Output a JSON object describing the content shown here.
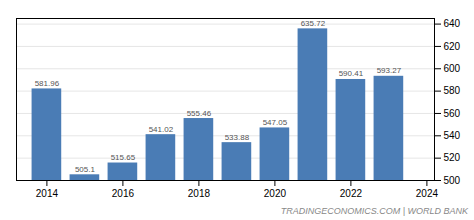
{
  "chart_data": {
    "type": "bar",
    "x": [
      2014,
      2015,
      2016,
      2017,
      2018,
      2019,
      2020,
      2021,
      2022,
      2023
    ],
    "values": [
      581.96,
      505.1,
      515.65,
      541.02,
      555.46,
      533.88,
      547.05,
      635.72,
      590.41,
      593.27
    ],
    "color": "#4a7cb5",
    "xlim": [
      2013.2,
      2024.2
    ],
    "xticks": [
      2014,
      2016,
      2018,
      2020,
      2022,
      2024
    ],
    "ylim": [
      500,
      645
    ],
    "yticks": [
      500,
      520,
      540,
      560,
      580,
      600,
      620,
      640
    ],
    "grid": true,
    "data_labels": true,
    "annotations": [
      "TRADINGECONOMICS.COM | WORLD BANK"
    ]
  }
}
